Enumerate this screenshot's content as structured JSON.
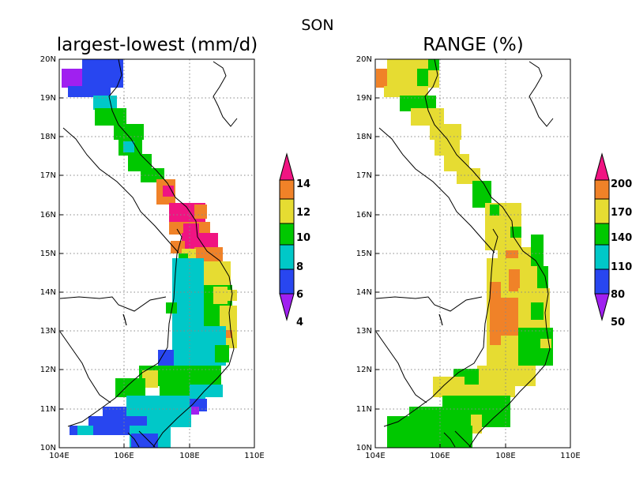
{
  "figure_title": "SON",
  "x_ticks": [
    "104E",
    "106E",
    "108E",
    "110E"
  ],
  "y_ticks": [
    "10N",
    "11N",
    "12N",
    "13N",
    "14N",
    "15N",
    "16N",
    "17N",
    "18N",
    "19N",
    "20N"
  ],
  "panels": [
    {
      "title": "largest-lowest (mm/d)",
      "colorbar_labels": [
        "4",
        "6",
        "8",
        "10",
        "12",
        "14"
      ],
      "colors": [
        "#a020f0",
        "#2846f0",
        "#00c8c8",
        "#00c800",
        "#e6dc32",
        "#f08228",
        "#f01482"
      ]
    },
    {
      "title": "RANGE (%)",
      "colorbar_labels": [
        "50",
        "80",
        "110",
        "140",
        "170",
        "200"
      ],
      "colors": [
        "#a020f0",
        "#2846f0",
        "#00c8c8",
        "#00c800",
        "#e6dc32",
        "#f08228",
        "#f01482"
      ]
    }
  ]
}
